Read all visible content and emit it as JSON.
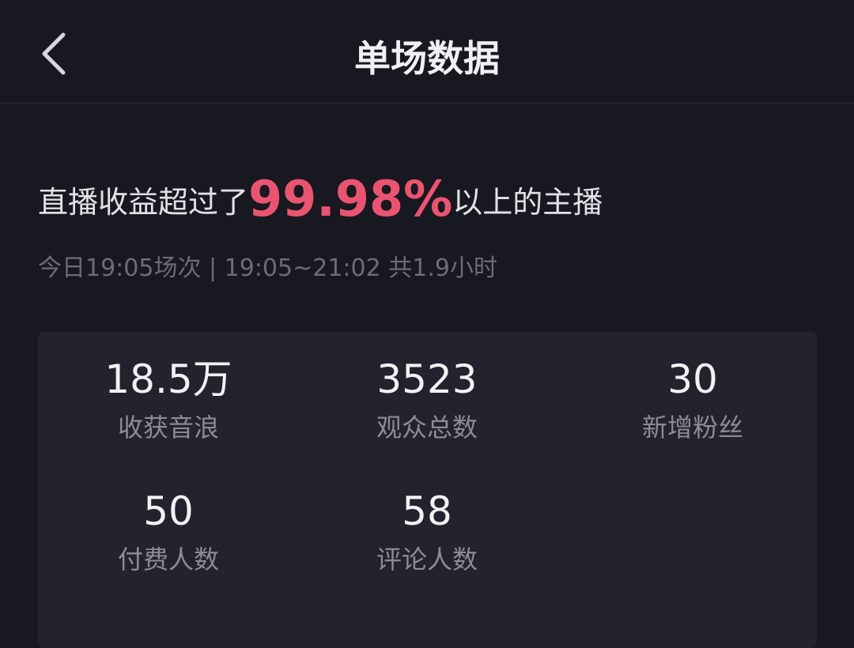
{
  "header": {
    "title": "单场数据",
    "back_icon": "chevron-left-icon"
  },
  "summary": {
    "prefix": "直播收益超过了",
    "percent": "99.98%",
    "suffix": "以上的主播",
    "percent_color": "#ea5470"
  },
  "session": {
    "text": "今日19:05场次 | 19:05~21:02 共1.9小时"
  },
  "stats": [
    {
      "value": "18.5万",
      "label": "收获音浪"
    },
    {
      "value": "3523",
      "label": "观众总数"
    },
    {
      "value": "30",
      "label": "新增粉丝"
    },
    {
      "value": "50",
      "label": "付费人数"
    },
    {
      "value": "58",
      "label": "评论人数"
    }
  ]
}
